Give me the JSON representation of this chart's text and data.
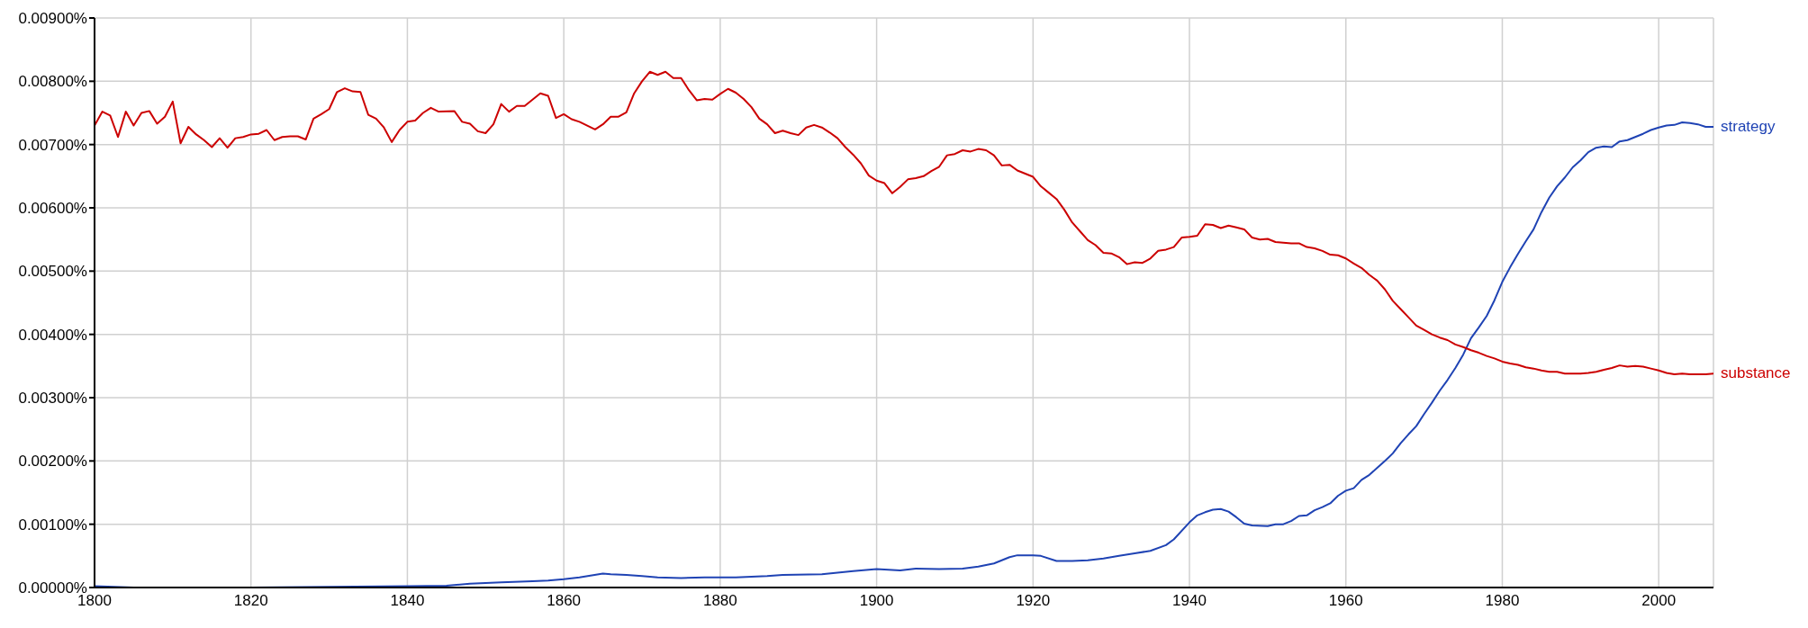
{
  "chart_data": {
    "type": "line",
    "xlim": [
      1800,
      2007
    ],
    "xticks": [
      1800,
      1820,
      1840,
      1860,
      1880,
      1900,
      1920,
      1940,
      1960,
      1980,
      2000
    ],
    "ylim": [
      0,
      0.009
    ],
    "yticks": [
      {
        "value": 0,
        "label": "0.00000%"
      },
      {
        "value": 0.001,
        "label": "0.00100%"
      },
      {
        "value": 0.002,
        "label": "0.00200%"
      },
      {
        "value": 0.003,
        "label": "0.00300%"
      },
      {
        "value": 0.004,
        "label": "0.00400%"
      },
      {
        "value": 0.005,
        "label": "0.00500%"
      },
      {
        "value": 0.006,
        "label": "0.00600%"
      },
      {
        "value": 0.007,
        "label": "0.00700%"
      },
      {
        "value": 0.008,
        "label": "0.00800%"
      },
      {
        "value": 0.009,
        "label": "0.00900%"
      }
    ],
    "grid": true,
    "legend": false,
    "marker": "none",
    "line_style": "solid",
    "series": [
      {
        "name": "strategy",
        "color": "#1f43b4",
        "x": [
          1800,
          1805,
          1820,
          1830,
          1840,
          1845,
          1848,
          1852,
          1856,
          1858,
          1860,
          1862,
          1865,
          1866,
          1868,
          1870,
          1872,
          1875,
          1878,
          1882,
          1886,
          1888,
          1893,
          1897,
          1900,
          1903,
          1905,
          1908,
          1911,
          1913,
          1915,
          1917,
          1918,
          1920,
          1921,
          1923,
          1925,
          1927,
          1929,
          1931,
          1933,
          1935,
          1937,
          1938,
          1940,
          1941,
          1942,
          1943,
          1944,
          1945,
          1946,
          1947,
          1948,
          1950,
          1951,
          1952,
          1953,
          1954,
          1955,
          1956,
          1957,
          1958,
          1959,
          1960,
          1961,
          1962,
          1963,
          1964,
          1965,
          1966,
          1967,
          1968,
          1969,
          1970,
          1971,
          1972,
          1973,
          1974,
          1975,
          1976,
          1977,
          1978,
          1979,
          1980,
          1981,
          1982,
          1983,
          1984,
          1985,
          1986,
          1987,
          1988,
          1989,
          1990,
          1991,
          1992,
          1993,
          1994,
          1995,
          1996,
          1997,
          1998,
          1999,
          2000,
          2001,
          2002,
          2003,
          2004,
          2005,
          2006,
          2007
        ],
        "values": [
          2e-05,
          0,
          0,
          1e-05,
          2e-05,
          3e-05,
          6e-05,
          8e-05,
          0.0001,
          0.00011,
          0.00013,
          0.00016,
          0.00022,
          0.00021,
          0.0002,
          0.00018,
          0.00016,
          0.00015,
          0.00016,
          0.00016,
          0.00018,
          0.0002,
          0.00021,
          0.00026,
          0.00029,
          0.00027,
          0.0003,
          0.00029,
          0.0003,
          0.00033,
          0.00038,
          0.00048,
          0.00051,
          0.00051,
          0.0005,
          0.00042,
          0.00042,
          0.00043,
          0.00046,
          0.0005,
          0.00054,
          0.00058,
          0.00067,
          0.00076,
          0.00103,
          0.00114,
          0.00119,
          0.00123,
          0.00124,
          0.0012,
          0.00111,
          0.00101,
          0.00098,
          0.00097,
          0.001,
          0.001,
          0.00105,
          0.00113,
          0.00114,
          0.00122,
          0.00127,
          0.00133,
          0.00145,
          0.00153,
          0.00157,
          0.0017,
          0.00178,
          0.00189,
          0.002,
          0.00212,
          0.00228,
          0.00242,
          0.00255,
          0.00274,
          0.00292,
          0.00311,
          0.00328,
          0.00347,
          0.00368,
          0.00394,
          0.00411,
          0.00429,
          0.00454,
          0.00483,
          0.00506,
          0.00527,
          0.00547,
          0.00566,
          0.00593,
          0.00616,
          0.00634,
          0.00648,
          0.00664,
          0.00675,
          0.00688,
          0.00695,
          0.00697,
          0.00696,
          0.00705,
          0.00707,
          0.00712,
          0.00717,
          0.00723,
          0.00727,
          0.0073,
          0.00731,
          0.00735,
          0.00734,
          0.00732,
          0.00728,
          0.00728
        ]
      },
      {
        "name": "substance",
        "color": "#cc0000",
        "x": [
          1800,
          1801,
          1802,
          1803,
          1804,
          1805,
          1806,
          1807,
          1808,
          1809,
          1810,
          1811,
          1812,
          1813,
          1814,
          1815,
          1816,
          1817,
          1818,
          1819,
          1820,
          1821,
          1822,
          1823,
          1824,
          1825,
          1826,
          1827,
          1828,
          1829,
          1830,
          1831,
          1832,
          1833,
          1834,
          1835,
          1836,
          1837,
          1838,
          1839,
          1840,
          1841,
          1842,
          1843,
          1844,
          1846,
          1847,
          1848,
          1849,
          1850,
          1851,
          1852,
          1853,
          1854,
          1855,
          1857,
          1858,
          1859,
          1860,
          1861,
          1862,
          1863,
          1864,
          1865,
          1866,
          1867,
          1868,
          1869,
          1870,
          1871,
          1872,
          1873,
          1874,
          1875,
          1876,
          1877,
          1878,
          1879,
          1880,
          1881,
          1882,
          1883,
          1884,
          1885,
          1886,
          1887,
          1888,
          1889,
          1890,
          1891,
          1892,
          1893,
          1894,
          1895,
          1896,
          1897,
          1898,
          1899,
          1900,
          1901,
          1902,
          1903,
          1904,
          1905,
          1906,
          1907,
          1908,
          1909,
          1910,
          1911,
          1912,
          1913,
          1914,
          1915,
          1916,
          1917,
          1918,
          1919,
          1920,
          1921,
          1922,
          1923,
          1924,
          1925,
          1926,
          1927,
          1928,
          1929,
          1930,
          1931,
          1932,
          1933,
          1934,
          1935,
          1936,
          1937,
          1938,
          1939,
          1940,
          1941,
          1942,
          1943,
          1944,
          1945,
          1946,
          1947,
          1948,
          1949,
          1950,
          1951,
          1952,
          1953,
          1954,
          1955,
          1956,
          1957,
          1958,
          1959,
          1960,
          1961,
          1962,
          1963,
          1964,
          1965,
          1966,
          1967,
          1968,
          1969,
          1970,
          1971,
          1972,
          1973,
          1974,
          1975,
          1976,
          1977,
          1978,
          1979,
          1980,
          1981,
          1982,
          1983,
          1984,
          1985,
          1986,
          1987,
          1988,
          1989,
          1990,
          1991,
          1992,
          1993,
          1994,
          1995,
          1996,
          1997,
          1998,
          1999,
          2000,
          2001,
          2002,
          2003,
          2004,
          2005,
          2006,
          2007
        ],
        "values": [
          0.0073,
          0.00752,
          0.00746,
          0.00712,
          0.00752,
          0.0073,
          0.0075,
          0.00753,
          0.00733,
          0.00744,
          0.00768,
          0.00702,
          0.00728,
          0.00716,
          0.00707,
          0.00696,
          0.0071,
          0.00695,
          0.0071,
          0.00712,
          0.00716,
          0.00717,
          0.00723,
          0.00707,
          0.00712,
          0.00713,
          0.00713,
          0.00708,
          0.00741,
          0.00748,
          0.00756,
          0.00783,
          0.00789,
          0.00784,
          0.00783,
          0.00747,
          0.00741,
          0.00727,
          0.00704,
          0.00723,
          0.00736,
          0.00738,
          0.0075,
          0.00758,
          0.00752,
          0.00753,
          0.00736,
          0.00733,
          0.00721,
          0.00718,
          0.00732,
          0.00764,
          0.00752,
          0.00761,
          0.00761,
          0.00781,
          0.00777,
          0.00742,
          0.00748,
          0.0074,
          0.00736,
          0.0073,
          0.00724,
          0.00732,
          0.00744,
          0.00744,
          0.00751,
          0.00781,
          0.008,
          0.00815,
          0.0081,
          0.00815,
          0.00805,
          0.00805,
          0.00786,
          0.0077,
          0.00772,
          0.00771,
          0.0078,
          0.00788,
          0.00782,
          0.00772,
          0.00759,
          0.00741,
          0.00732,
          0.00718,
          0.00722,
          0.00718,
          0.00715,
          0.00727,
          0.00731,
          0.00727,
          0.00719,
          0.0071,
          0.00696,
          0.00684,
          0.0067,
          0.00651,
          0.00643,
          0.00639,
          0.00623,
          0.00633,
          0.00645,
          0.00647,
          0.0065,
          0.00658,
          0.00665,
          0.00683,
          0.00685,
          0.00691,
          0.00689,
          0.00693,
          0.00691,
          0.00683,
          0.00667,
          0.00668,
          0.00659,
          0.00654,
          0.00649,
          0.00634,
          0.00624,
          0.00614,
          0.00597,
          0.00577,
          0.00563,
          0.00549,
          0.00541,
          0.00529,
          0.00528,
          0.00522,
          0.00511,
          0.00514,
          0.00513,
          0.0052,
          0.00532,
          0.00534,
          0.00538,
          0.00553,
          0.00554,
          0.00556,
          0.00574,
          0.00573,
          0.00568,
          0.00572,
          0.00569,
          0.00566,
          0.00553,
          0.0055,
          0.00551,
          0.00546,
          0.00545,
          0.00544,
          0.00544,
          0.00538,
          0.00536,
          0.00532,
          0.00526,
          0.00525,
          0.0052,
          0.00512,
          0.00505,
          0.00494,
          0.00485,
          0.00471,
          0.00453,
          0.0044,
          0.00427,
          0.00414,
          0.00407,
          0.004,
          0.00395,
          0.00391,
          0.00384,
          0.0038,
          0.00375,
          0.00371,
          0.00366,
          0.00362,
          0.00357,
          0.00354,
          0.00352,
          0.00348,
          0.00346,
          0.00343,
          0.00341,
          0.00341,
          0.00338,
          0.00338,
          0.00338,
          0.00339,
          0.00341,
          0.00344,
          0.00347,
          0.00351,
          0.00349,
          0.0035,
          0.00349,
          0.00346,
          0.00343,
          0.00339,
          0.00337,
          0.00338,
          0.00337,
          0.00337,
          0.00337,
          0.00338
        ]
      }
    ]
  }
}
